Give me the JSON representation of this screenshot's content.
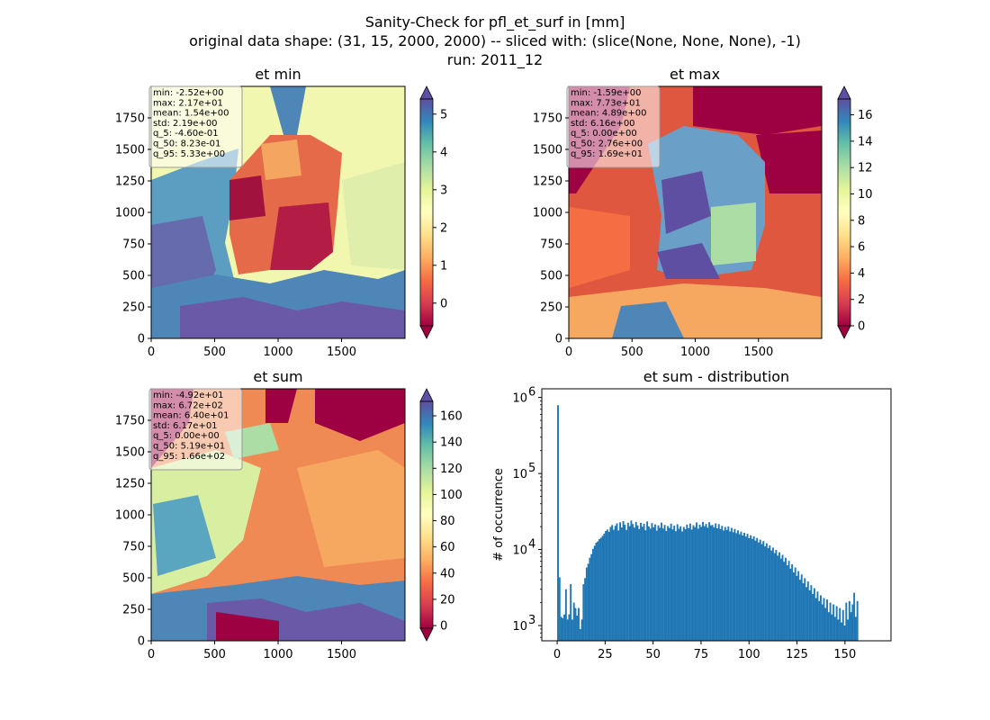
{
  "figure": {
    "title_lines": [
      "Sanity-Check for pfl_et_surf in [mm]",
      "original data shape: (31, 15, 2000, 2000) -- sliced with: (slice(None, None, None), -1)",
      "run: 2011_12"
    ]
  },
  "colors": {
    "spectral": [
      "#9e0142",
      "#d53e4f",
      "#f46d43",
      "#fdae61",
      "#fee08b",
      "#ffffbf",
      "#e6f598",
      "#abdda4",
      "#66c2a5",
      "#3288bd",
      "#5e4fa2"
    ],
    "hist_bar": "#1f77b4",
    "stats_box_fill": "#ffffff",
    "stats_box_stroke": "#999999"
  },
  "chart_data": [
    {
      "type": "heatmap",
      "title": "et min",
      "x_ticks": [
        "0",
        "500",
        "1000",
        "1500"
      ],
      "y_ticks": [
        "0",
        "250",
        "500",
        "750",
        "1000",
        "1250",
        "1500",
        "1750"
      ],
      "xlim": [
        0,
        2000
      ],
      "ylim": [
        0,
        2000
      ],
      "colorbar": {
        "min": -0.6,
        "max": 5.4,
        "ticks": [
          0,
          1,
          2,
          3,
          4,
          5
        ],
        "tick_labels": [
          "0",
          "1",
          "2",
          "3",
          "4",
          "5"
        ],
        "extend": "both"
      },
      "stats": [
        "min: -2.52e+00",
        "max: 2.17e+01",
        "mean: 1.54e+00",
        "std: 2.19e+00",
        "q_5: -4.60e-01",
        "q_50: 8.23e-01",
        "q_95: 5.33e+00"
      ]
    },
    {
      "type": "heatmap",
      "title": "et max",
      "x_ticks": [
        "0",
        "500",
        "1000",
        "1500"
      ],
      "y_ticks": [
        "0",
        "250",
        "500",
        "750",
        "1000",
        "1250",
        "1500",
        "1750"
      ],
      "xlim": [
        0,
        2000
      ],
      "ylim": [
        0,
        2000
      ],
      "colorbar": {
        "min": 0,
        "max": 17.2,
        "ticks": [
          0,
          2,
          4,
          6,
          8,
          10,
          12,
          14,
          16
        ],
        "tick_labels": [
          "0",
          "2",
          "4",
          "6",
          "8",
          "10",
          "12",
          "14",
          "16"
        ],
        "extend": "both"
      },
      "stats": [
        "min: -1.59e+00",
        "max: 7.73e+01",
        "mean: 4.89e+00",
        "std: 6.16e+00",
        "q_5: 0.00e+00",
        "q_50: 2.76e+00",
        "q_95: 1.69e+01"
      ]
    },
    {
      "type": "heatmap",
      "title": "et sum",
      "x_ticks": [
        "0",
        "500",
        "1000",
        "1500"
      ],
      "y_ticks": [
        "0",
        "250",
        "500",
        "750",
        "1000",
        "1250",
        "1500",
        "1750"
      ],
      "xlim": [
        0,
        2000
      ],
      "ylim": [
        0,
        2000
      ],
      "colorbar": {
        "min": -2,
        "max": 171,
        "ticks": [
          0,
          20,
          40,
          60,
          80,
          100,
          120,
          140,
          160
        ],
        "tick_labels": [
          "0",
          "20",
          "40",
          "60",
          "80",
          "100",
          "120",
          "140",
          "160"
        ],
        "extend": "both"
      },
      "stats": [
        "min: -4.92e+01",
        "max: 6.72e+02",
        "mean: 6.40e+01",
        "std: 6.17e+01",
        "q_5: 0.00e+00",
        "q_50: 5.19e+01",
        "q_95: 1.66e+02"
      ]
    },
    {
      "type": "bar",
      "title": "et sum - distribution",
      "ylabel": "# of occurrence",
      "yscale": "log",
      "xlim": [
        -8,
        174
      ],
      "ylim": [
        630,
        1300000
      ],
      "x_ticks": [
        "0",
        "25",
        "50",
        "75",
        "100",
        "125",
        "150"
      ],
      "y_ticks": [
        "10",
        "10",
        "10",
        "10"
      ],
      "y_tick_exponents": [
        "3",
        "4",
        "5",
        "6"
      ],
      "bins": {
        "start": 0,
        "width": 0.83,
        "counts": [
          790000,
          4300,
          1300,
          1250,
          1400,
          3000,
          1200,
          1400,
          3500,
          1200,
          2000,
          1700,
          1350,
          1700,
          900,
          1200,
          3500,
          4200,
          5800,
          6500,
          7800,
          8700,
          10200,
          11200,
          12300,
          12800,
          13700,
          14300,
          15100,
          16200,
          17500,
          18300,
          17100,
          19800,
          21000,
          18200,
          20500,
          22100,
          17800,
          22800,
          19500,
          23600,
          21200,
          18100,
          22500,
          20300,
          24100,
          21600,
          19400,
          23000,
          20700,
          18600,
          22400,
          19900,
          21800,
          17900,
          23400,
          20100,
          18800,
          22300,
          19600,
          21400,
          17700,
          20800,
          19300,
          22600,
          18900,
          21100,
          17600,
          20400,
          19200,
          21900,
          18400,
          20600,
          17400,
          21500,
          18700,
          20200,
          17300,
          19800,
          18500,
          21300,
          19100,
          22000,
          18300,
          20900,
          19700,
          22700,
          18800,
          21200,
          19900,
          23100,
          20300,
          21700,
          19400,
          22900,
          20800,
          21000,
          19500,
          22100,
          19000,
          21600,
          18600,
          20500,
          17800,
          19800,
          18100,
          20100,
          17300,
          19300,
          16900,
          18700,
          16400,
          17900,
          15900,
          17200,
          15300,
          16600,
          14800,
          16100,
          14100,
          15400,
          13800,
          14900,
          13100,
          14200,
          12400,
          13500,
          11800,
          12900,
          11000,
          12100,
          10400,
          11300,
          9700,
          10600,
          9000,
          9900,
          8300,
          9200,
          7600,
          8500,
          6900,
          7800,
          6200,
          7100,
          5600,
          6400,
          5000,
          5800,
          4500,
          5200,
          4000,
          4700,
          3600,
          4200,
          3200,
          3800,
          2900,
          3400,
          2600,
          3100,
          2300,
          2800,
          2100,
          2500,
          1900,
          2300,
          1700,
          2200,
          1500,
          2000,
          1400,
          1900,
          1300,
          1800,
          1200,
          1700,
          1100,
          1600,
          1000,
          2000,
          1200,
          2100,
          1500,
          1900,
          2700,
          1300,
          2100
        ]
      }
    }
  ]
}
